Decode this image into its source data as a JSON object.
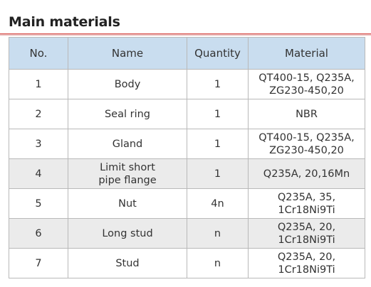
{
  "title": "Main materials",
  "table": {
    "header": [
      "No.",
      "Name",
      "Quantity",
      "Material"
    ],
    "rows": [
      [
        "1",
        "Body",
        "1",
        [
          "QT400-15, Q235A,",
          "ZG230-450,20"
        ]
      ],
      [
        "2",
        "Seal ring",
        "1",
        "NBR"
      ],
      [
        "3",
        "Gland",
        "1",
        [
          "QT400-15, Q235A,",
          "ZG230-450,20"
        ]
      ],
      [
        "4",
        [
          "Limit short",
          "pipe flange"
        ],
        "1",
        "Q235A, 20,16Mn"
      ],
      [
        "5",
        "Nut",
        "4n",
        [
          "Q235A, 35,",
          "1Cr18Ni9Ti"
        ]
      ],
      [
        "6",
        "Long stud",
        "n",
        [
          "Q235A, 20,",
          "1Cr18Ni9Ti"
        ]
      ],
      [
        "7",
        "Stud",
        "n",
        [
          "Q235A, 20,",
          "1Cr18Ni9Ti"
        ]
      ]
    ]
  }
}
